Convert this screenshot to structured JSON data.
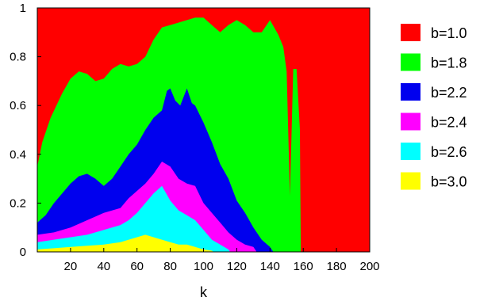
{
  "chart_data": {
    "type": "area",
    "title": "",
    "xlabel": "k",
    "ylabel": "",
    "xlim": [
      0,
      200
    ],
    "ylim": [
      0,
      1
    ],
    "xticks": [
      20,
      40,
      60,
      80,
      100,
      120,
      140,
      160,
      180,
      200
    ],
    "yticks": [
      0,
      0.2,
      0.4,
      0.6,
      0.8,
      1
    ],
    "ytick_labels": [
      "0",
      "0.2",
      "0.4",
      "0.6",
      "0.8",
      "1"
    ],
    "grid": false,
    "legend_position": "right",
    "series": [
      {
        "name": "b=1.0",
        "color": "#ff0000",
        "x": [
          0,
          200
        ],
        "y": [
          1.0,
          1.0
        ]
      },
      {
        "name": "b=1.8",
        "color": "#00ff00",
        "x": [
          0,
          3,
          8,
          15,
          20,
          25,
          30,
          35,
          40,
          45,
          50,
          55,
          60,
          65,
          70,
          75,
          80,
          85,
          90,
          95,
          100,
          105,
          110,
          115,
          120,
          125,
          130,
          135,
          140,
          145,
          148,
          150,
          152,
          154,
          156,
          158,
          158.5
        ],
        "y": [
          0.35,
          0.45,
          0.55,
          0.65,
          0.71,
          0.74,
          0.73,
          0.7,
          0.71,
          0.75,
          0.77,
          0.76,
          0.77,
          0.8,
          0.87,
          0.92,
          0.93,
          0.94,
          0.95,
          0.96,
          0.96,
          0.93,
          0.9,
          0.93,
          0.95,
          0.93,
          0.9,
          0.9,
          0.95,
          0.89,
          0.84,
          0.74,
          0.23,
          0.75,
          0.75,
          0.5,
          0.0
        ]
      },
      {
        "name": "b=2.2",
        "color": "#0000ee",
        "x": [
          0,
          5,
          10,
          15,
          20,
          25,
          30,
          35,
          40,
          45,
          50,
          55,
          60,
          65,
          70,
          75,
          78,
          80,
          83,
          86,
          90,
          93,
          95,
          100,
          105,
          110,
          115,
          120,
          125,
          130,
          135,
          140,
          142
        ],
        "y": [
          0.12,
          0.15,
          0.2,
          0.24,
          0.28,
          0.31,
          0.32,
          0.3,
          0.27,
          0.3,
          0.35,
          0.4,
          0.44,
          0.5,
          0.55,
          0.58,
          0.66,
          0.67,
          0.62,
          0.6,
          0.67,
          0.61,
          0.6,
          0.53,
          0.45,
          0.36,
          0.3,
          0.21,
          0.16,
          0.1,
          0.05,
          0.02,
          0.0
        ]
      },
      {
        "name": "b=2.4",
        "color": "#ff00ff",
        "x": [
          0,
          10,
          20,
          30,
          40,
          50,
          55,
          60,
          65,
          70,
          75,
          80,
          85,
          90,
          95,
          100,
          105,
          110,
          115,
          120,
          125,
          130,
          132
        ],
        "y": [
          0.07,
          0.08,
          0.1,
          0.13,
          0.16,
          0.18,
          0.22,
          0.25,
          0.28,
          0.32,
          0.37,
          0.35,
          0.3,
          0.28,
          0.27,
          0.2,
          0.16,
          0.12,
          0.08,
          0.05,
          0.03,
          0.02,
          0.0
        ]
      },
      {
        "name": "b=2.6",
        "color": "#00ffff",
        "x": [
          0,
          10,
          20,
          30,
          40,
          50,
          55,
          60,
          65,
          70,
          75,
          80,
          85,
          90,
          95,
          100,
          105,
          110,
          115,
          116
        ],
        "y": [
          0.04,
          0.05,
          0.06,
          0.07,
          0.09,
          0.11,
          0.13,
          0.16,
          0.2,
          0.24,
          0.27,
          0.21,
          0.17,
          0.15,
          0.13,
          0.09,
          0.05,
          0.03,
          0.01,
          0.0
        ]
      },
      {
        "name": "b=3.0",
        "color": "#ffff00",
        "x": [
          0,
          10,
          20,
          30,
          40,
          50,
          55,
          60,
          65,
          70,
          75,
          80,
          85,
          90,
          95,
          100,
          105,
          106
        ],
        "y": [
          0.01,
          0.015,
          0.02,
          0.025,
          0.03,
          0.04,
          0.05,
          0.06,
          0.07,
          0.06,
          0.05,
          0.04,
          0.03,
          0.03,
          0.02,
          0.01,
          0.005,
          0.0
        ]
      }
    ]
  }
}
